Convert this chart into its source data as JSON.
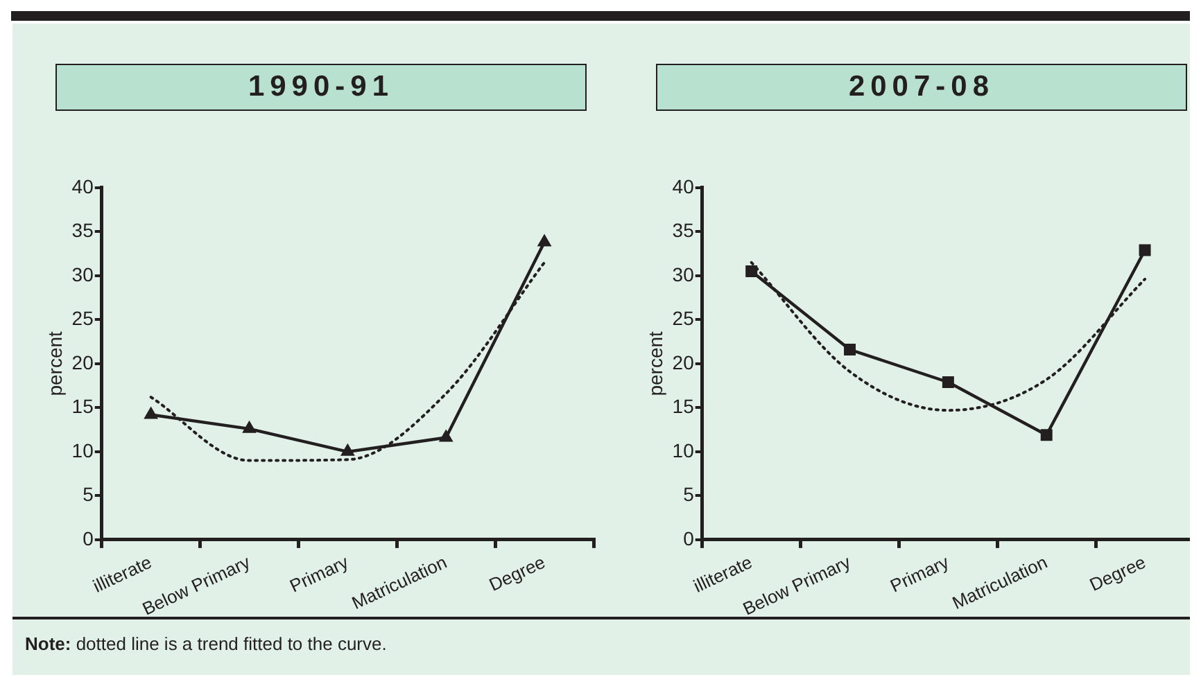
{
  "chart_data": [
    {
      "type": "line",
      "title": "1990-91",
      "ylabel": "percent",
      "categories": [
        "illiterate",
        "Below Primary",
        "Primary",
        "Matriculation",
        "Degree"
      ],
      "series": [
        {
          "color": "#231f20",
          "values": [
            14.2,
            12.6,
            10,
            11.6,
            33.8
          ],
          "marker": "triangle",
          "line_style": "solid"
        },
        {
          "type": "line",
          "x": [
            "illiterate",
            "Below Primary",
            "Primary",
            "Matriculation",
            "Degree"
          ],
          "color": "#231f20",
          "values": [
            16.2,
            9.0,
            9.1,
            16.6,
            31.5
          ],
          "marker": "none",
          "line_style": "dotted"
        }
      ],
      "ylim": [
        0,
        40
      ],
      "yticks": [
        0,
        5,
        10,
        15,
        20,
        25,
        30,
        35,
        40
      ],
      "grid": false,
      "legend": false,
      "annotations": [
        "Note: dotted line is a trend fitted to the curve."
      ]
    },
    {
      "type": "line",
      "title": "2007-08",
      "ylabel": "percent",
      "categories": [
        "illiterate",
        "Below Primary",
        "Primary",
        "Matriculation",
        "Degree"
      ],
      "series": [
        {
          "color": "#231f20",
          "values": [
            30.5,
            21.6,
            17.9,
            11.9,
            32.9
          ],
          "marker": "square",
          "line_style": "solid"
        },
        {
          "type": "line",
          "x": [
            "illiterate",
            "Below Primary",
            "Primary",
            "Matriculation",
            "Degree"
          ],
          "color": "#231f20",
          "values": [
            31.5,
            19.1,
            14.7,
            18.2,
            29.6
          ],
          "marker": "none",
          "line_style": "dotted"
        }
      ],
      "ylim": [
        0,
        40
      ],
      "yticks": [
        0,
        5,
        10,
        15,
        20,
        25,
        30,
        35,
        40
      ],
      "grid": false,
      "legend": false
    }
  ]
}
